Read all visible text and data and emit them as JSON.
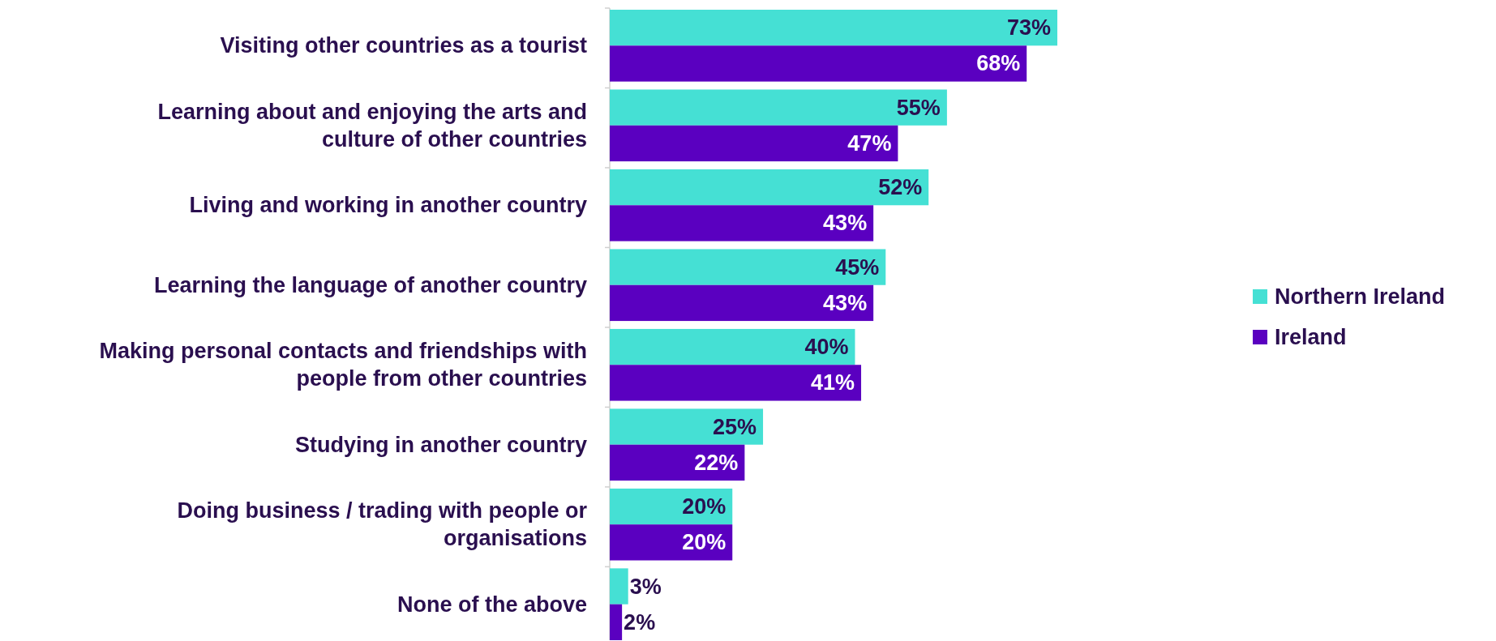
{
  "chart_data": {
    "type": "bar",
    "orientation": "horizontal",
    "categories": [
      "Visiting other countries as a tourist",
      "Learning about and enjoying the arts and culture of other countries",
      "Living and working in another country",
      "Learning the language of another country",
      "Making personal contacts and friendships with people from other countries",
      "Studying in another country",
      "Doing business / trading with people or organisations",
      "None of the above"
    ],
    "series": [
      {
        "name": "Northern Ireland",
        "color": "#45e0d4",
        "values": [
          73,
          55,
          52,
          45,
          40,
          25,
          20,
          3
        ],
        "value_labels": [
          "73%",
          "55%",
          "52%",
          "45%",
          "40%",
          "25%",
          "20%",
          "3%"
        ]
      },
      {
        "name": "Ireland",
        "color": "#5a00c0",
        "values": [
          68,
          47,
          43,
          43,
          41,
          22,
          20,
          2
        ],
        "value_labels": [
          "68%",
          "47%",
          "43%",
          "43%",
          "41%",
          "22%",
          "20%",
          "2%"
        ]
      }
    ],
    "legend": "right"
  }
}
